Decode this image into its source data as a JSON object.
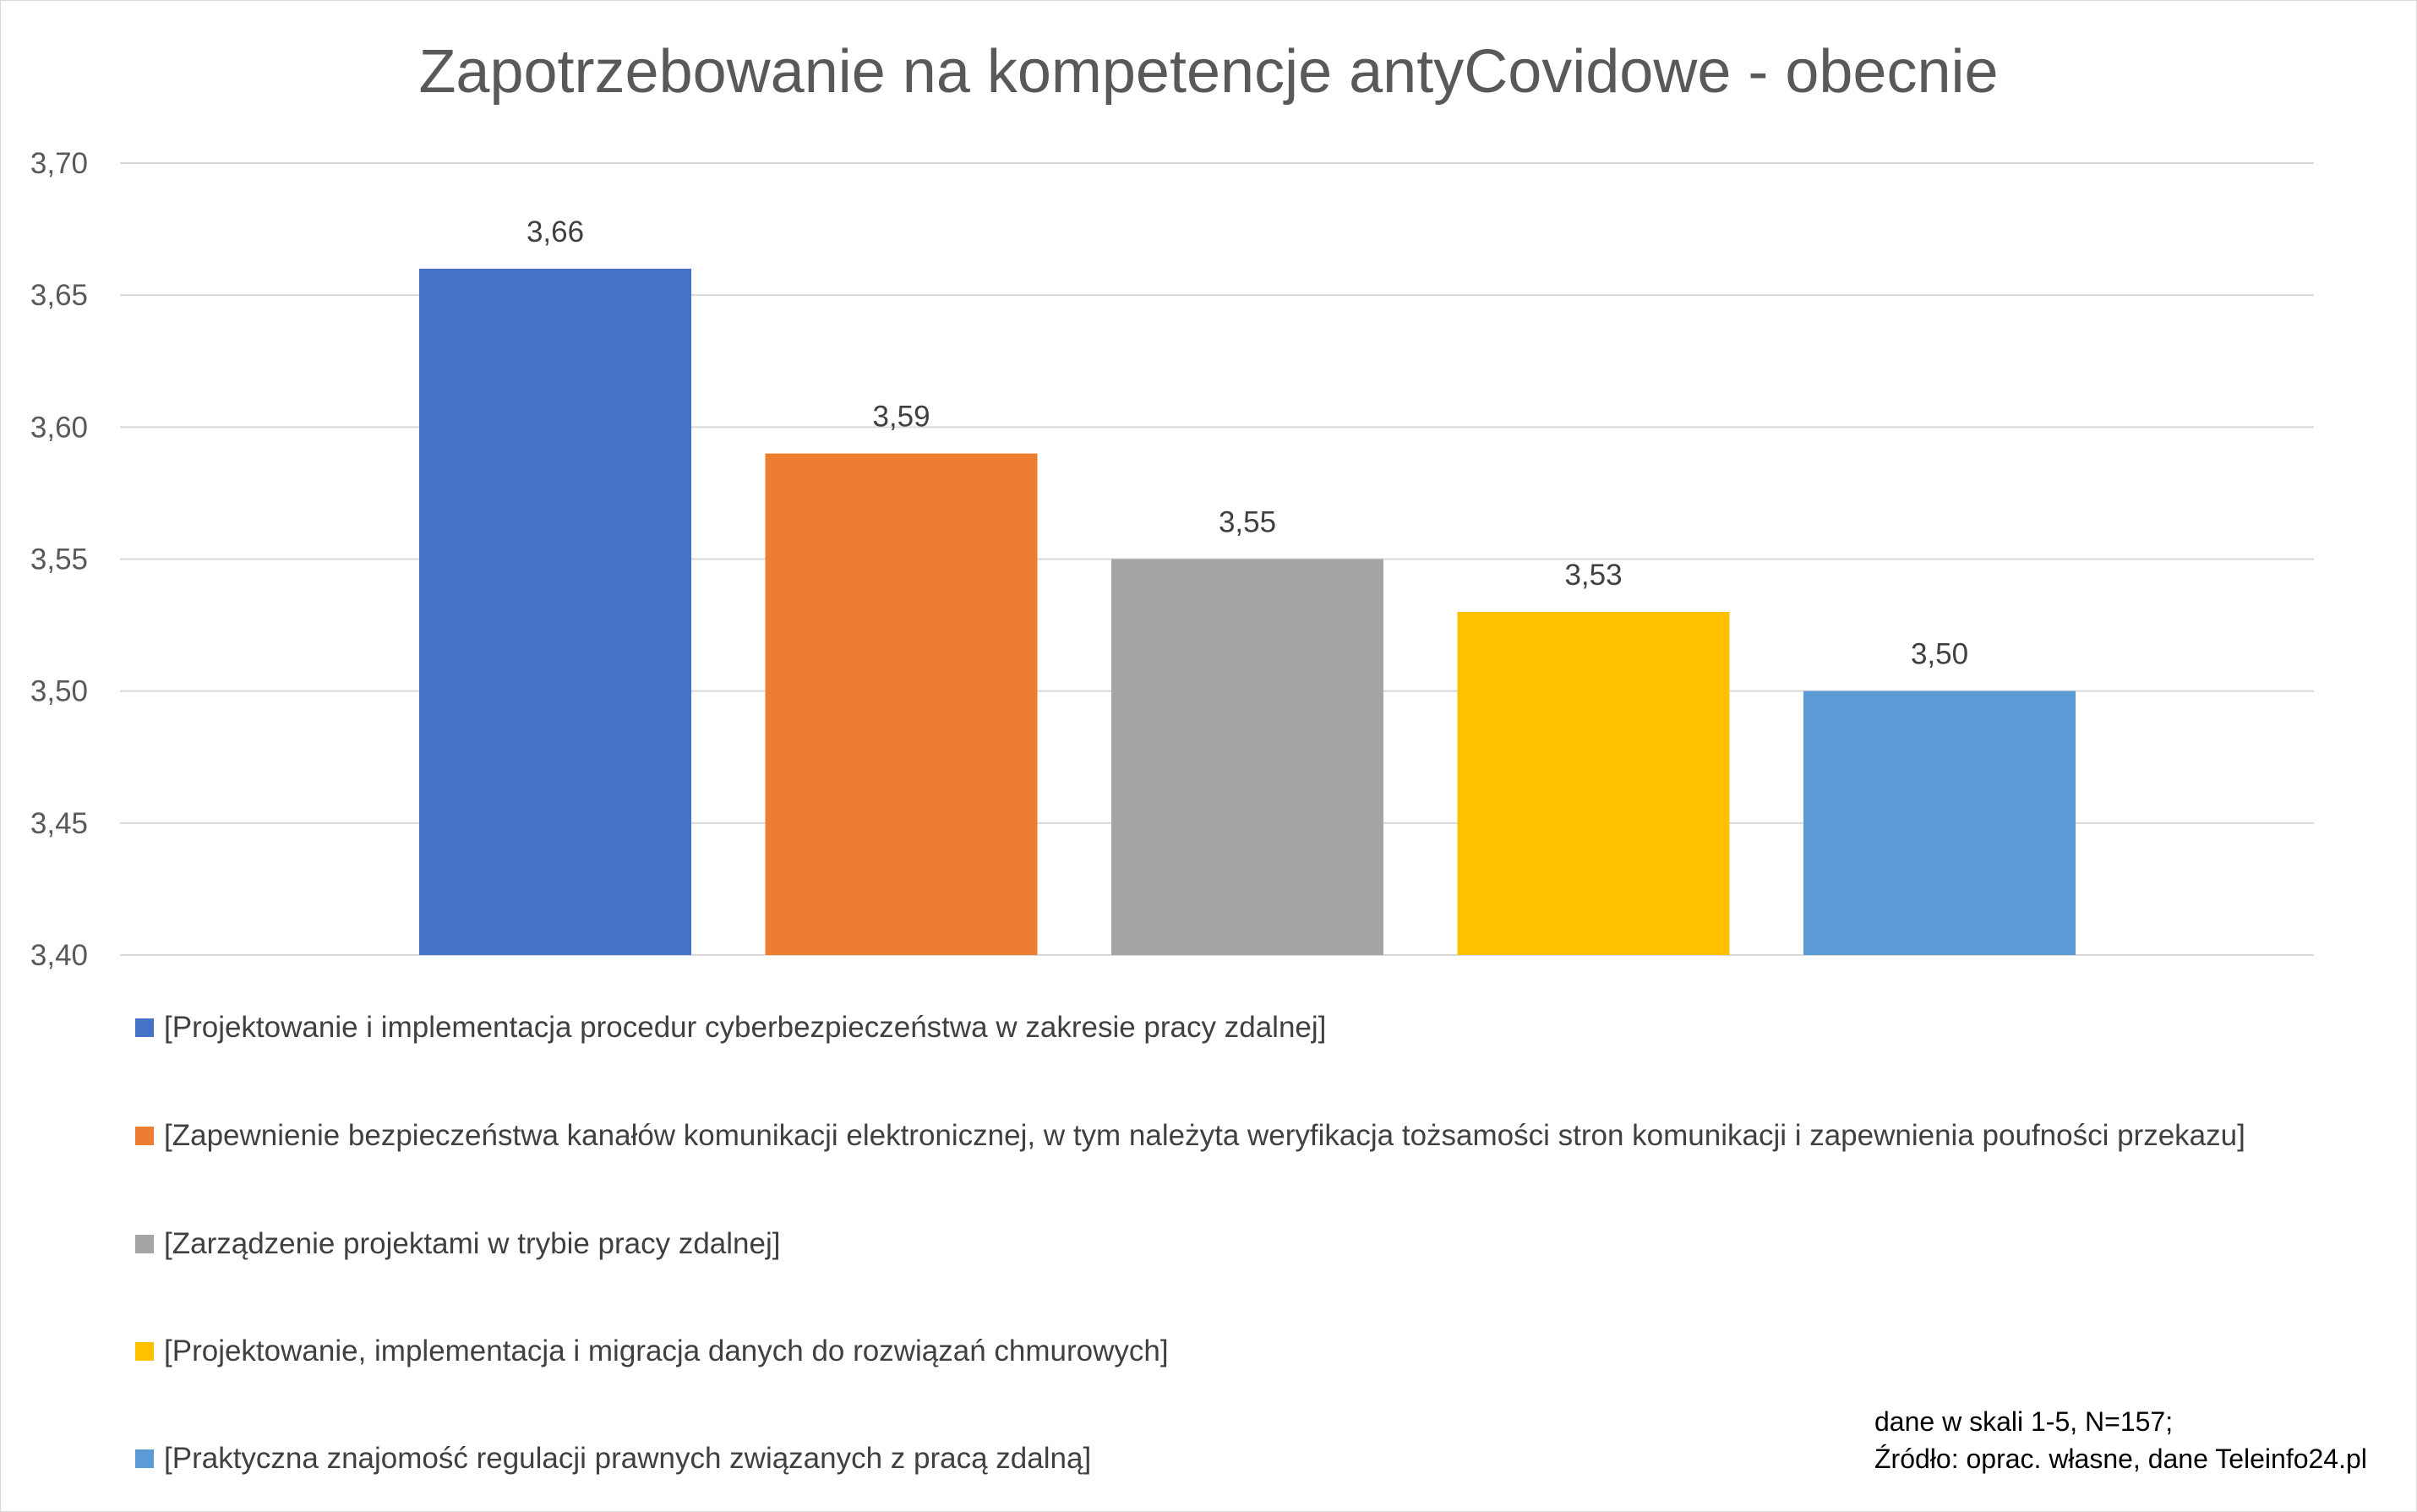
{
  "chart_data": {
    "type": "bar",
    "title": "Zapotrzebowanie na kompetencje antyCovidowe - obecnie",
    "xlabel": "",
    "ylabel": "",
    "ylim": [
      3.4,
      3.7
    ],
    "yticks": [
      "3,40",
      "3,45",
      "3,50",
      "3,55",
      "3,60",
      "3,65",
      "3,70"
    ],
    "grid": true,
    "legend_position": "bottom",
    "series": [
      {
        "name": "[Projektowanie i implementacja procedur cyberbezpieczeństwa w zakresie pracy zdalnej]",
        "value": 3.66,
        "label": "3,66",
        "color": "#4472c4"
      },
      {
        "name": "[Zapewnienie bezpieczeństwa kanałów komunikacji elektronicznej, w tym należyta weryfikacja tożsamości stron komunikacji i zapewnienia poufności przekazu]",
        "value": 3.59,
        "label": "3,59",
        "color": "#ed7d31"
      },
      {
        "name": "[Zarządzenie projektami w trybie pracy zdalnej]",
        "value": 3.55,
        "label": "3,55",
        "color": "#a5a5a5"
      },
      {
        "name": "[Projektowanie, implementacja i migracja danych do rozwiązań chmurowych]",
        "value": 3.53,
        "label": "3,53",
        "color": "#ffc000"
      },
      {
        "name": "[Praktyczna znajomość regulacji prawnych związanych z pracą zdalną]",
        "value": 3.5,
        "label": "3,50",
        "color": "#5b9bd5"
      }
    ]
  },
  "note": {
    "line1": "dane w skali 1-5, N=157;",
    "line2": "Źródło: oprac. własne, dane Teleinfo24.pl"
  }
}
